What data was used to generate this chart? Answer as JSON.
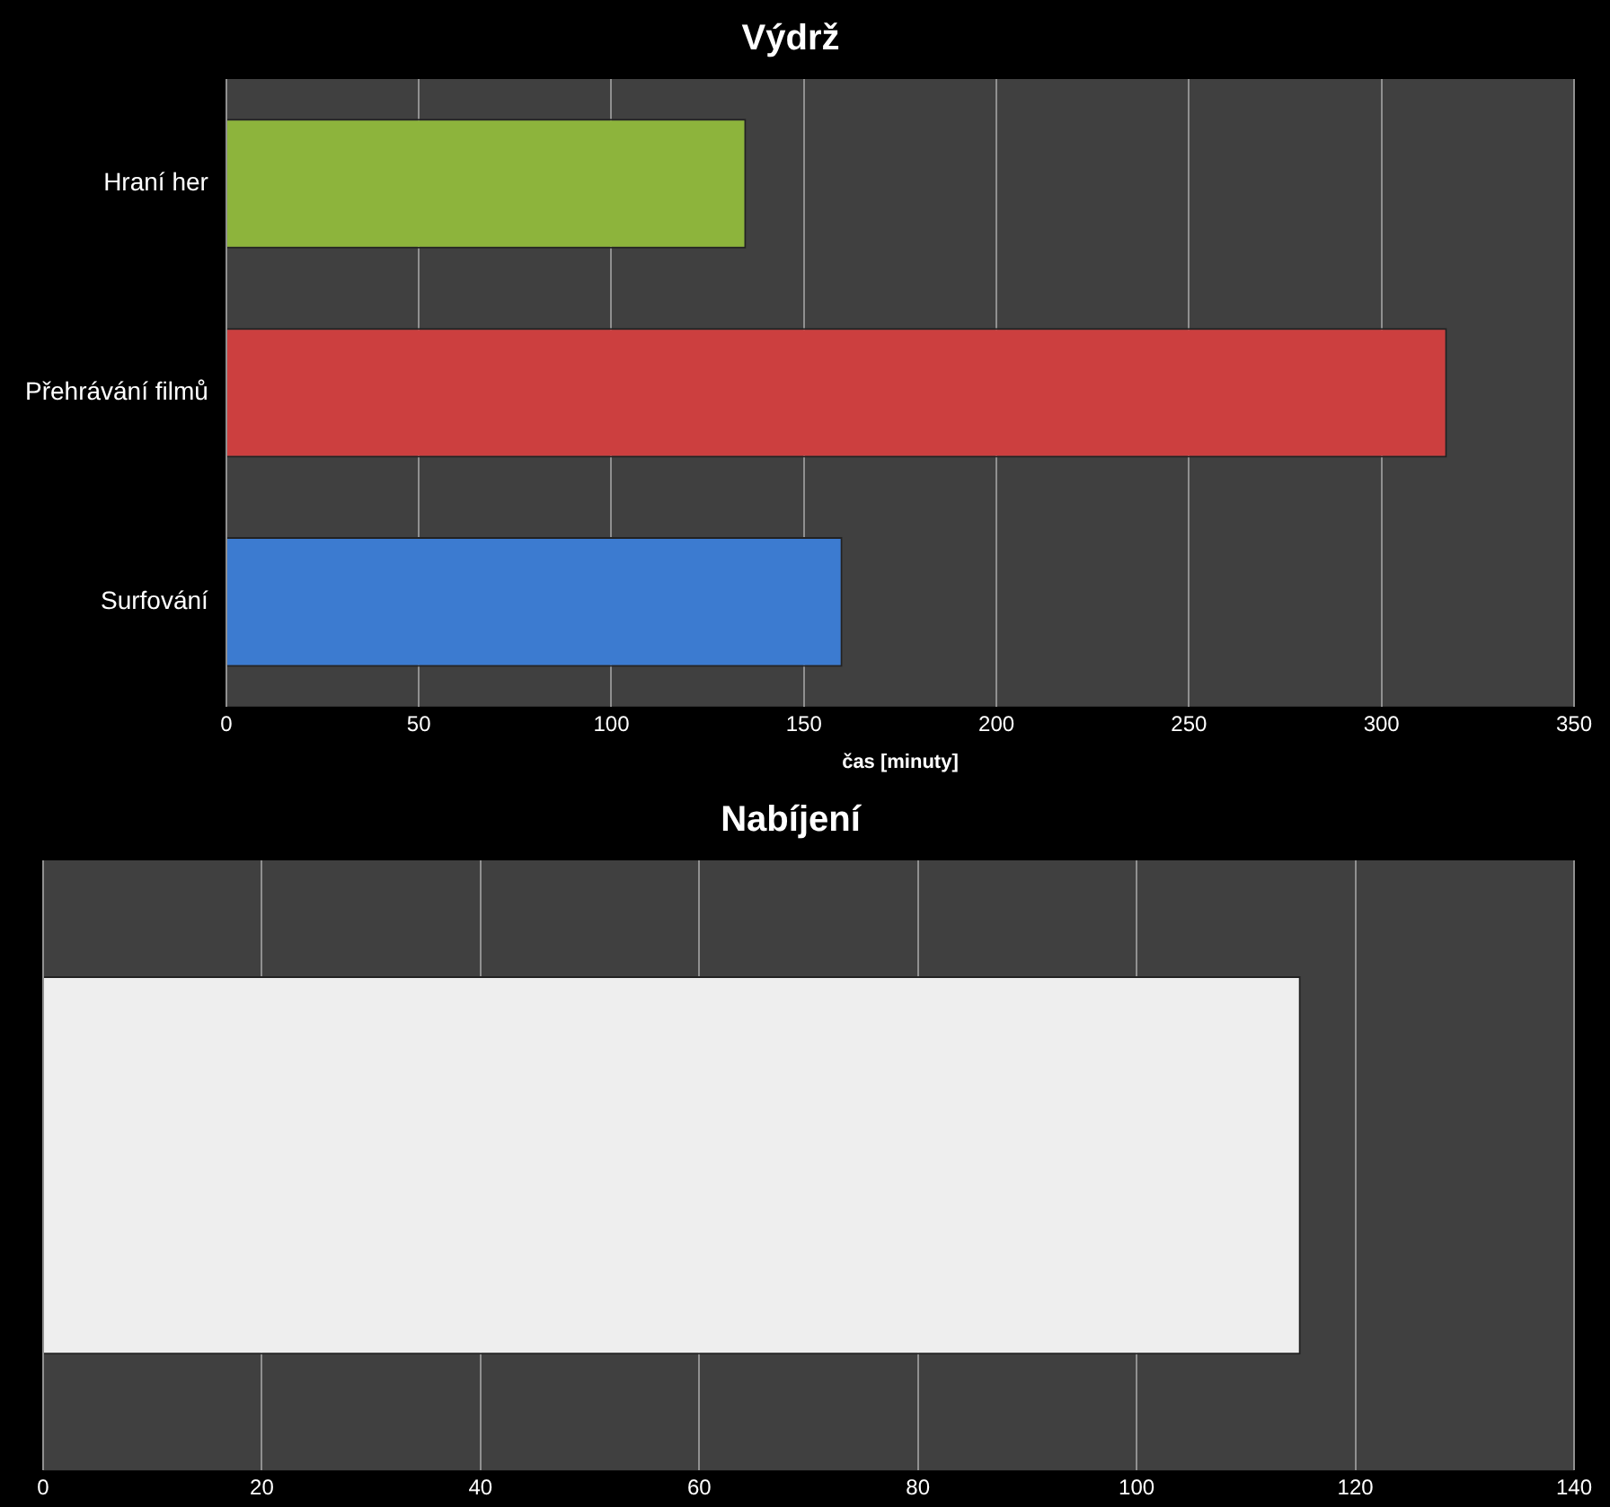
{
  "chart_data": [
    {
      "type": "bar",
      "title": "Výdrž",
      "orientation": "horizontal",
      "categories": [
        "Hraní her",
        "Přehrávání filmů",
        "Surfování"
      ],
      "xlabel": "čas [minuty]",
      "series": [
        {
          "colors": [
            "#8db43c",
            "#cc3f3f",
            "#3c7bd0"
          ],
          "values": [
            135,
            317,
            160
          ]
        }
      ],
      "xlim": [
        0,
        350
      ],
      "xticks": [
        0,
        50,
        100,
        150,
        200,
        250,
        300,
        350
      ],
      "grid": "x",
      "legend": false
    },
    {
      "type": "bar",
      "title": "Nabíjení",
      "orientation": "horizontal",
      "categories": [
        null
      ],
      "series": [
        {
          "color": "#eeeeee",
          "values": [
            115
          ]
        }
      ],
      "xlim": [
        0,
        140
      ],
      "xticks": [
        0,
        20,
        40,
        60,
        80,
        100,
        120,
        140
      ],
      "grid": "x",
      "legend": false
    }
  ]
}
